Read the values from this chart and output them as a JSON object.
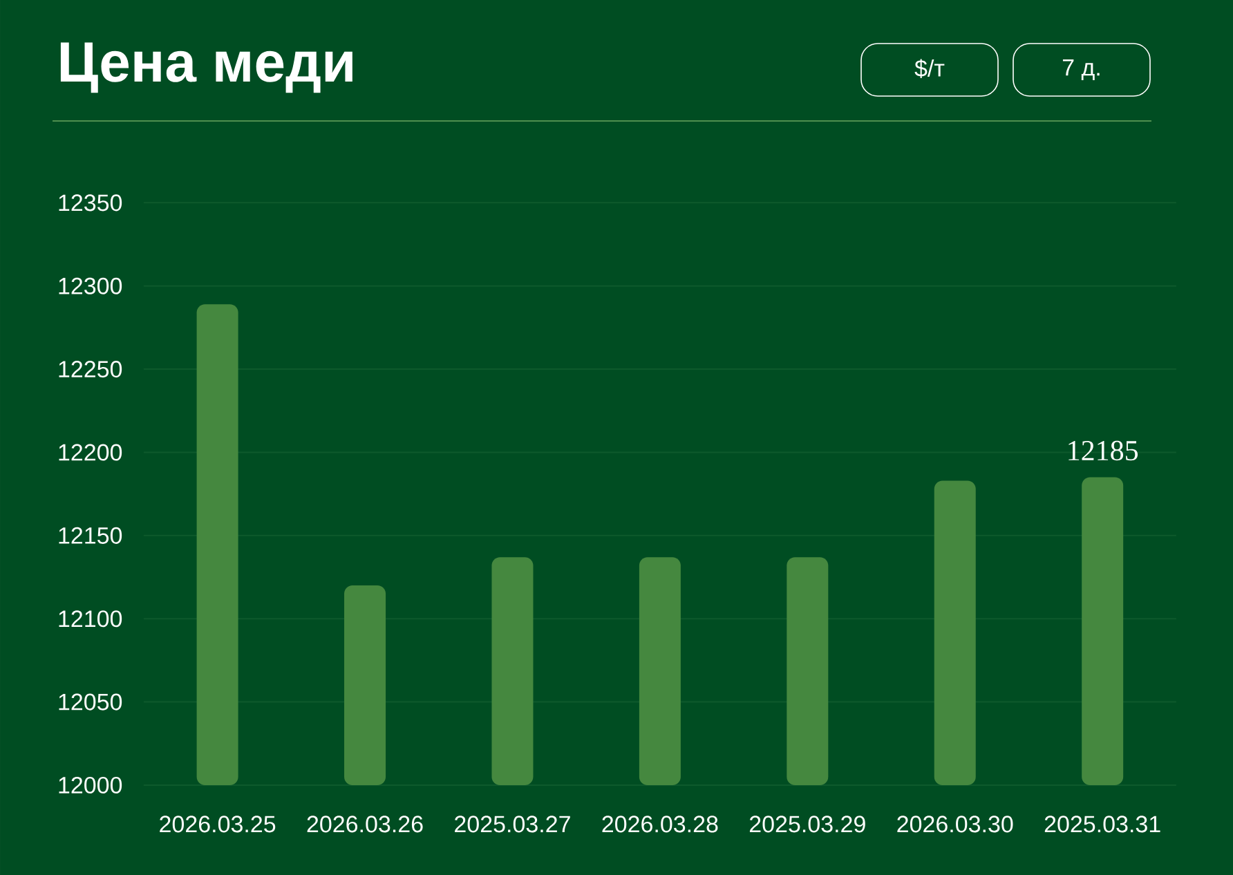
{
  "chart_data": {
    "type": "bar",
    "title": "Цена меди",
    "annotations": [
      "$/т",
      "7 д."
    ],
    "categories": [
      "2026.03.25",
      "2026.03.26",
      "2025.03.27",
      "2026.03.28",
      "2025.03.29",
      "2026.03.30",
      "2025.03.31"
    ],
    "values": [
      12289,
      12120,
      12137,
      12137,
      12137,
      12183,
      12185
    ],
    "color": "#45883f",
    "value_labels": [
      null,
      null,
      null,
      null,
      null,
      null,
      "12185"
    ],
    "ylim": [
      12000,
      12350
    ],
    "yticks": [
      12000,
      12050,
      12100,
      12150,
      12200,
      12250,
      12300,
      12350
    ],
    "grid": "y"
  }
}
